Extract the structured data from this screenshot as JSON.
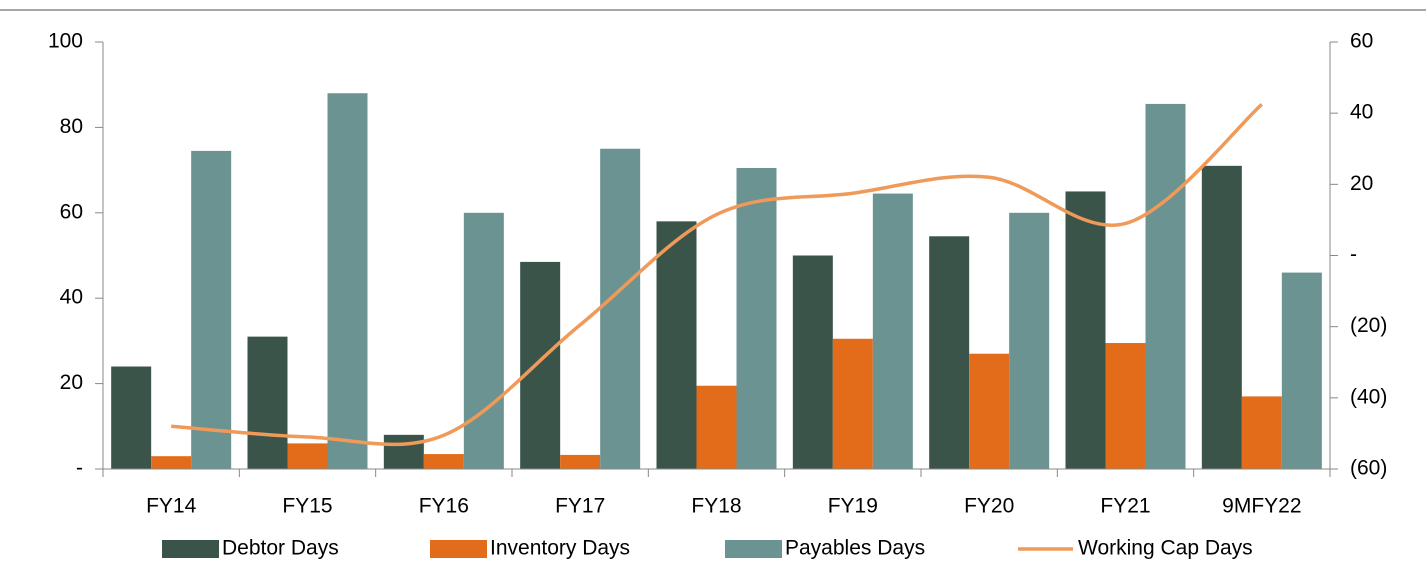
{
  "chart_data": {
    "type": "bar",
    "categories": [
      "FY14",
      "FY15",
      "FY16",
      "FY17",
      "FY18",
      "FY19",
      "FY20",
      "FY21",
      "9MFY22"
    ],
    "series": [
      {
        "name": "Debtor Days",
        "color": "#3b5449",
        "values": [
          24,
          31,
          8,
          48.5,
          58,
          50,
          54.5,
          65,
          71
        ]
      },
      {
        "name": "Inventory Days",
        "color": "#e36c1a",
        "values": [
          3,
          6,
          3.5,
          3.3,
          19.5,
          30.5,
          27,
          29.5,
          17
        ]
      },
      {
        "name": "Payables Days",
        "color": "#6b9391",
        "values": [
          74.5,
          88,
          60,
          75,
          70.5,
          64.5,
          60,
          85.5,
          46
        ]
      },
      {
        "name": "Working Cap Days",
        "color": "#f09a5a",
        "type": "line",
        "axis": "y2",
        "values": [
          -48,
          -51,
          -50.5,
          -19.5,
          11.5,
          17.5,
          22,
          9,
          42.5
        ]
      }
    ],
    "ylim": [
      0,
      100
    ],
    "yticks": [
      {
        "value": 0,
        "label": "-"
      },
      20,
      40,
      60,
      80,
      100
    ],
    "y2lim": [
      -60,
      60
    ],
    "y2ticks": [
      {
        "value": -60,
        "label": "(60)"
      },
      {
        "value": -40,
        "label": "(40)"
      },
      {
        "value": -20,
        "label": "(20)"
      },
      {
        "value": 0,
        "label": "-"
      },
      20,
      40,
      60
    ],
    "legend": "bottom"
  }
}
